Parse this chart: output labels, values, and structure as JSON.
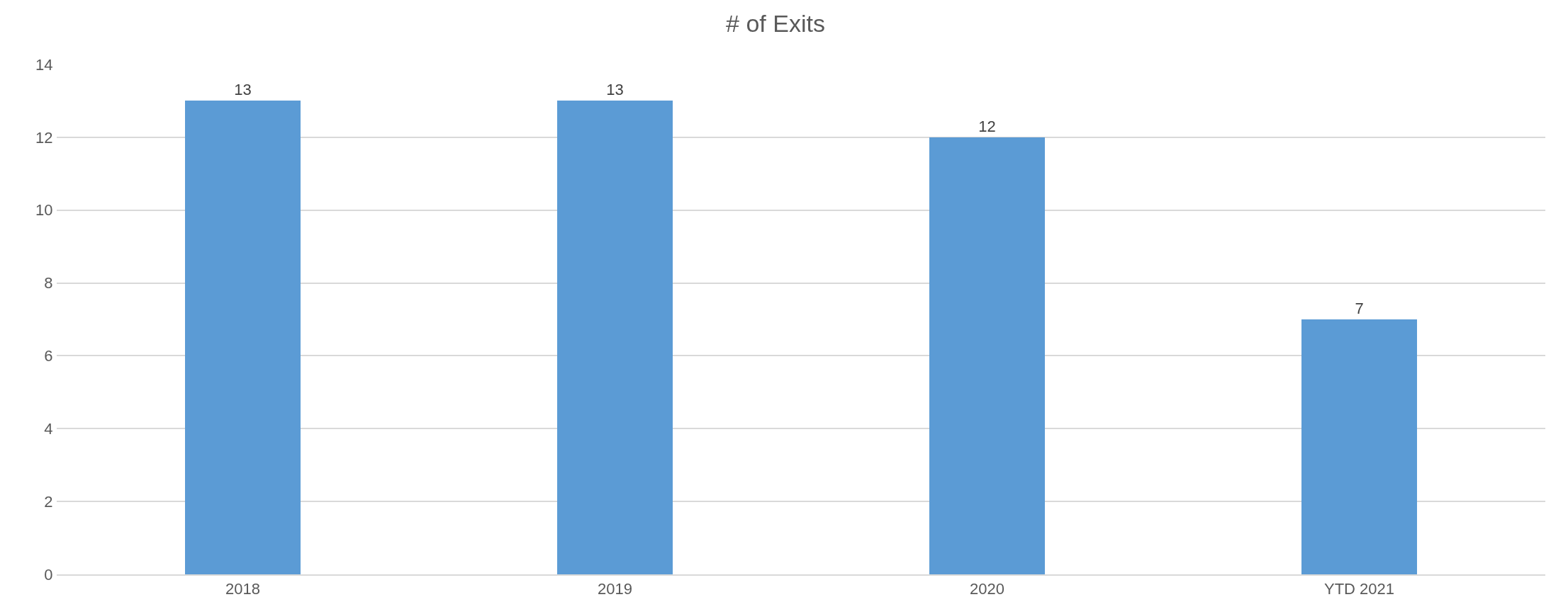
{
  "chart_data": {
    "type": "bar",
    "title": "# of Exits",
    "categories": [
      "2018",
      "2019",
      "2020",
      "YTD 2021"
    ],
    "values": [
      13,
      13,
      12,
      7
    ],
    "color": "#5b9bd5",
    "ylim": [
      0,
      14
    ],
    "yticks": [
      0,
      2,
      4,
      6,
      8,
      10,
      12,
      14
    ],
    "grid": "y",
    "data_labels": true
  }
}
